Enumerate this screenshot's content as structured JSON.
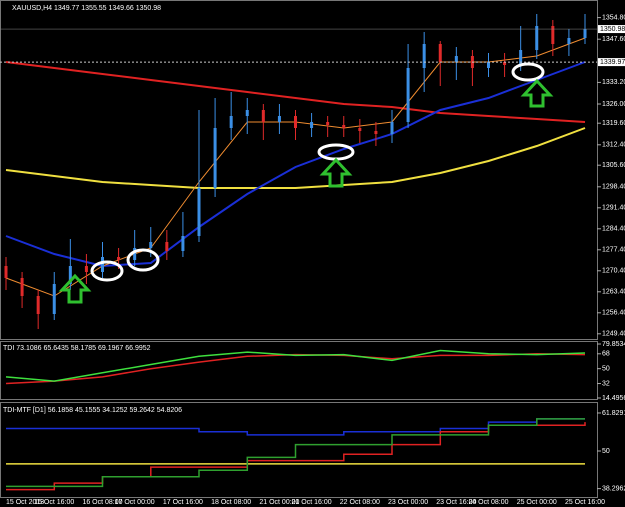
{
  "chart_data": [
    {
      "type": "candlestick",
      "title": "XAUUSD,H4  1349.77 1355.55 1349.66 1350.98",
      "categories": [
        "15 Oct 2013",
        null,
        null,
        "15 Oct 16:00",
        null,
        null,
        "16 Oct 08:00",
        null,
        "17 Oct 00:00",
        null,
        null,
        "17 Oct 16:00",
        null,
        null,
        "18 Oct 08:00",
        null,
        null,
        "21 Oct 00:00",
        null,
        "21 Oct 16:00",
        null,
        null,
        "22 Oct 08:00",
        null,
        null,
        "23 Oct 00:00",
        null,
        null,
        "23 Oct 16:00",
        null,
        "24 Oct 08:00",
        null,
        null,
        "25 Oct 00:00",
        null,
        null,
        "25 Oct 16:00"
      ],
      "open": [
        1272,
        1268,
        1262,
        1256,
        1266,
        1272,
        1270,
        1275,
        1274,
        1278,
        1280,
        1277,
        1282,
        1298,
        1318,
        1322,
        1324,
        1320,
        1322,
        1318,
        1320,
        1319,
        1318,
        1317,
        1316,
        1320,
        1338,
        1346,
        1340,
        1342,
        1338,
        1340,
        1339,
        1344,
        1352,
        1346,
        1348
      ],
      "high": [
        1275,
        1270,
        1264,
        1270,
        1281,
        1276,
        1280,
        1278,
        1284,
        1285,
        1284,
        1290,
        1324,
        1328,
        1330,
        1328,
        1326,
        1326,
        1324,
        1323,
        1322,
        1322,
        1321,
        1320,
        1324,
        1346,
        1350,
        1347,
        1345,
        1344,
        1343,
        1343,
        1352,
        1356,
        1354,
        1351,
        1356
      ],
      "low": [
        1264,
        1258,
        1251,
        1254,
        1264,
        1266,
        1268,
        1271,
        1272,
        1275,
        1274,
        1275,
        1280,
        1295,
        1314,
        1316,
        1314,
        1316,
        1314,
        1315,
        1315,
        1315,
        1313,
        1312,
        1313,
        1318,
        1330,
        1332,
        1334,
        1332,
        1335,
        1335,
        1337,
        1341,
        1342,
        1342,
        1346
      ],
      "close": [
        1268,
        1262,
        1256,
        1266,
        1272,
        1270,
        1275,
        1274,
        1278,
        1280,
        1277,
        1282,
        1298,
        1318,
        1322,
        1324,
        1320,
        1322,
        1318,
        1320,
        1319,
        1318,
        1317,
        1316,
        1320,
        1338,
        1346,
        1340,
        1342,
        1338,
        1340,
        1339,
        1344,
        1352,
        1346,
        1348,
        1351
      ],
      "up_color": "#3b8fe6",
      "down_color": "#e02a2a",
      "overlays": [
        {
          "color": "#e02222",
          "x": [
            0,
            3,
            6,
            9,
            12,
            15,
            18,
            21,
            24,
            27,
            30,
            33,
            36
          ],
          "values": [
            1340,
            1338,
            1336,
            1334,
            1332,
            1330,
            1328,
            1326,
            1325,
            1323,
            1322,
            1321,
            1320
          ]
        },
        {
          "color": "#f0e040",
          "x": [
            0,
            3,
            6,
            9,
            12,
            15,
            18,
            21,
            24,
            27,
            30,
            33,
            36
          ],
          "values": [
            1304,
            1302,
            1300,
            1299,
            1298,
            1298,
            1298,
            1299,
            1300,
            1303,
            1307,
            1312,
            1318
          ]
        },
        {
          "color": "#1a2fd6",
          "x": [
            0,
            3,
            6,
            9,
            12,
            15,
            18,
            21,
            24,
            27,
            30,
            33,
            36
          ],
          "values": [
            1282,
            1276,
            1272,
            1273,
            1285,
            1296,
            1305,
            1311,
            1316,
            1324,
            1328,
            1334,
            1340
          ]
        },
        {
          "color": "#f08c30",
          "x": [
            0,
            3,
            6,
            9,
            12,
            15,
            18,
            21,
            24,
            27,
            30,
            33,
            36
          ],
          "values": [
            1268,
            1262,
            1272,
            1278,
            1300,
            1320,
            1320,
            1318,
            1320,
            1340,
            1340,
            1342,
            1348
          ]
        }
      ],
      "ylim": [
        1248,
        1360
      ],
      "yticks": [
        {
          "value": 1354.8,
          "label": "1354.80"
        },
        {
          "value": 1347.6,
          "label": "1347.60"
        },
        {
          "value": 1333.2,
          "label": "1333.20"
        },
        {
          "value": 1326,
          "label": "1326.00"
        },
        {
          "value": 1319.6,
          "label": "1319.60"
        },
        {
          "value": 1312.4,
          "label": "1312.40"
        },
        {
          "value": 1305.6,
          "label": "1305.60"
        },
        {
          "value": 1298.4,
          "label": "1298.40"
        },
        {
          "value": 1291.4,
          "label": "1291.40"
        },
        {
          "value": 1284.4,
          "label": "1284.40"
        },
        {
          "value": 1277.4,
          "label": "1277.40"
        },
        {
          "value": 1270.4,
          "label": "1270.40"
        },
        {
          "value": 1263.4,
          "label": "1263.40"
        },
        {
          "value": 1256.4,
          "label": "1256.40"
        },
        {
          "value": 1249.4,
          "label": "1249.40"
        }
      ],
      "hline": 1339.97,
      "last_price": 1350.98
    },
    {
      "type": "line",
      "title": "TDI 73.1086 65.6435 58.1785 69.1967 66.9952",
      "series": [
        {
          "color": "#e02222",
          "values": [
            32,
            35,
            40,
            50,
            58,
            65,
            67,
            66,
            62,
            66,
            66,
            68,
            67
          ]
        },
        {
          "color": "#3ee03e",
          "values": [
            40,
            35,
            45,
            55,
            65,
            70,
            66,
            67,
            60,
            72,
            68,
            67,
            69
          ]
        }
      ],
      "ylim": [
        14.4956,
        79.8534
      ],
      "yticks": [
        79.8534,
        68,
        50,
        32,
        14.4956
      ]
    },
    {
      "type": "step",
      "title": "TDI-MTF [D1] 56.1858 45.1555 34.1252 59.2642 54.8206",
      "series": [
        {
          "color": "#1a2fd6",
          "values": [
            57,
            57,
            57,
            57,
            56,
            55,
            55,
            56,
            56,
            57,
            59,
            60,
            60
          ]
        },
        {
          "color": "#f0e040",
          "values": [
            46,
            46,
            46,
            46,
            46,
            46,
            46,
            46,
            46,
            46,
            46,
            46,
            46
          ]
        },
        {
          "color": "#e02222",
          "values": [
            38,
            40,
            42,
            45,
            45,
            47,
            47,
            49,
            52,
            56,
            58,
            58,
            59
          ]
        },
        {
          "color": "#2fa02f",
          "values": [
            39,
            39,
            42,
            42,
            44,
            48,
            52,
            52,
            55,
            55,
            58,
            60,
            60
          ]
        }
      ],
      "ylim": [
        36,
        64
      ],
      "yticks": [
        61.8291,
        50,
        38.2962
      ]
    }
  ]
}
